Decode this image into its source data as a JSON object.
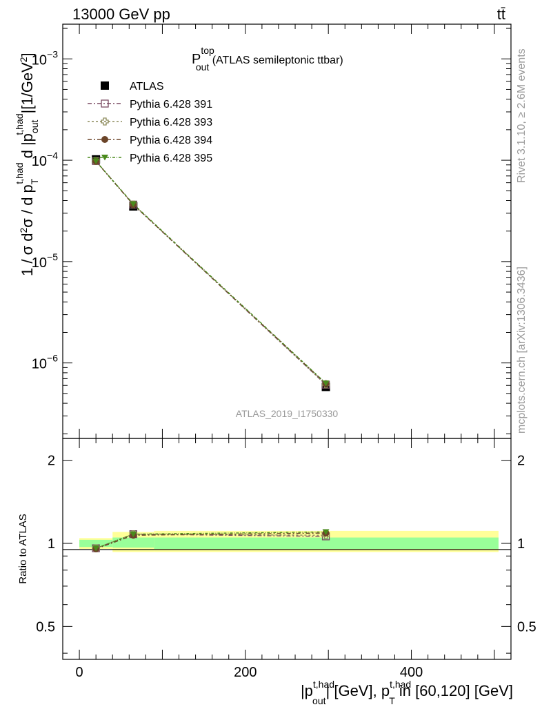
{
  "header": {
    "energy_label": "13000 GeV pp",
    "process_label": "tt̄"
  },
  "side": {
    "rivet_label": "Rivet 3.1.10, ≥ 2.6M events",
    "mcplots_label": "mcplots.cern.ch [arXiv:1306.3436]"
  },
  "chart_data": {
    "type": "line",
    "title_main": "P",
    "title_sup": "top",
    "title_sub": "out",
    "title_rest": " (ATLAS semileptonic ttbar)",
    "watermark": "ATLAS_2019_I1750330",
    "ylabel_main": {
      "p1": "1 / σ d",
      "sup2": "2",
      "p2": "σ / d p",
      "sub_T": "T",
      "sup_thad1": "t,had",
      "p3": " d |p",
      "sub_out": "out",
      "sup_thad2": "t,had",
      "p4": "|[1/GeV",
      "sup_exp": "2",
      "p5": "]"
    },
    "ylabel_ratio": "Ratio to ATLAS",
    "xlabel": {
      "p1": "|p",
      "sup1": "t,had",
      "sub1": "out",
      "p2": "| [GeV], p",
      "sup2": "t,had",
      "sub2": "T",
      "p3": " in [60,120] [GeV]"
    },
    "x_ticks": [
      "0",
      "200",
      "400"
    ],
    "y_ticks_main": [
      {
        "base": "10",
        "exp": "−3"
      },
      {
        "base": "10",
        "exp": "−4"
      },
      {
        "base": "10",
        "exp": "−5"
      },
      {
        "base": "10",
        "exp": "−6"
      }
    ],
    "y_ticks_ratio": [
      "2",
      "1",
      "0.5"
    ],
    "xlim": [
      -20,
      520
    ],
    "ylim_main": [
      1.8e-07,
      0.0022
    ],
    "ylim_ratio": [
      0.38,
      2.4
    ],
    "yscale": "log",
    "legend_position": "top-left",
    "x": [
      20,
      65,
      297
    ],
    "bins": [
      [
        0,
        40
      ],
      [
        40,
        90
      ],
      [
        90,
        505
      ]
    ],
    "series": [
      {
        "name": "ATLAS",
        "color": "#000000",
        "marker": "square-filled",
        "values": [
          0.000102,
          3.5e-05,
          5.8e-07
        ]
      },
      {
        "name": "Pythia 6.428 391",
        "color": "#7a4a62",
        "marker": "square-open",
        "values": [
          9.8e-05,
          3.65e-05,
          6.1e-07
        ],
        "ratio": [
          0.96,
          1.08,
          1.06
        ]
      },
      {
        "name": "Pythia 6.428 393",
        "color": "#8c8a5a",
        "marker": "cross-open",
        "values": [
          9.8e-05,
          3.66e-05,
          6.15e-07
        ],
        "ratio": [
          0.96,
          1.08,
          1.07
        ]
      },
      {
        "name": "Pythia 6.428 394",
        "color": "#6b4428",
        "marker": "circle-filled",
        "values": [
          9.75e-05,
          3.64e-05,
          6.25e-07
        ],
        "ratio": [
          0.955,
          1.07,
          1.09
        ]
      },
      {
        "name": "Pythia 6.428 395",
        "color": "#4a8a1c",
        "marker": "triangle-down-filled",
        "values": [
          9.8e-05,
          3.7e-05,
          6.3e-07
        ],
        "ratio": [
          0.96,
          1.08,
          1.1
        ]
      }
    ],
    "ratio_bands": {
      "green": [
        [
          0.97,
          1.03
        ],
        [
          0.965,
          1.05
        ],
        [
          0.955,
          1.05
        ]
      ],
      "yellow": [
        [
          0.955,
          1.045
        ],
        [
          0.93,
          1.1
        ],
        [
          0.93,
          1.11
        ]
      ]
    }
  }
}
